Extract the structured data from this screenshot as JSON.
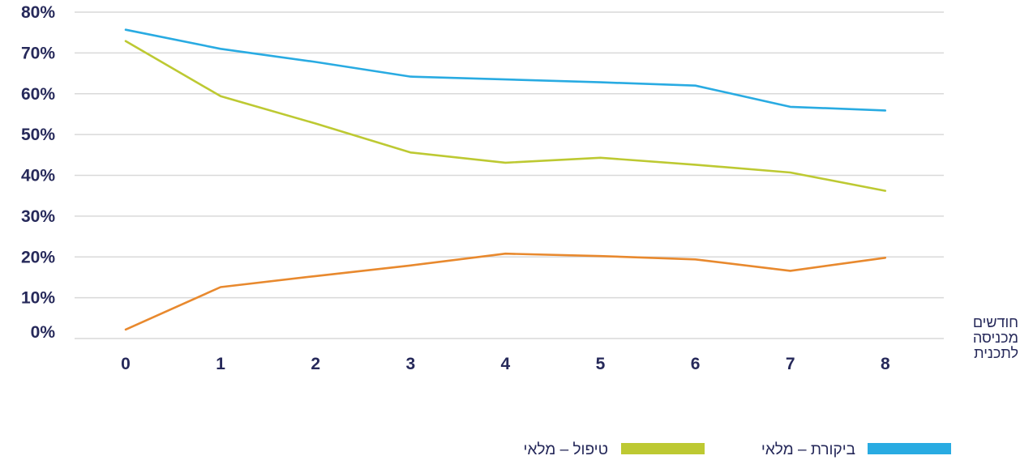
{
  "chart_data": {
    "type": "line",
    "title": "",
    "xlabel": [
      "חודשים",
      "מכניסה",
      "לתכנית"
    ],
    "ylabel": "",
    "x": [
      0,
      1,
      2,
      3,
      4,
      5,
      6,
      7,
      8
    ],
    "x_tick_labels": [
      "0",
      "1",
      "2",
      "3",
      "4",
      "5",
      "6",
      "7",
      "8"
    ],
    "ylim": [
      0,
      80
    ],
    "y_ticks": [
      0,
      10,
      20,
      30,
      40,
      50,
      60,
      70,
      80
    ],
    "y_tick_labels": [
      "0%",
      "10%",
      "20%",
      "30%",
      "40%",
      "50%",
      "60%",
      "70%",
      "80%"
    ],
    "grid": true,
    "legend_position": "bottom-right",
    "series": [
      {
        "name": "ביקורת – מלאי",
        "color": "#29abe2",
        "values": [
          75.7,
          71.0,
          67.8,
          64.2,
          63.5,
          62.8,
          62.0,
          56.8,
          55.9
        ]
      },
      {
        "name": "טיפול – מלאי",
        "color": "#bdc932",
        "values": [
          72.9,
          59.4,
          52.7,
          45.6,
          43.1,
          44.3,
          42.6,
          40.7,
          36.2
        ]
      },
      {
        "name": "",
        "color": "#e8892e",
        "values": [
          2.2,
          12.6,
          15.3,
          17.9,
          20.8,
          20.2,
          19.4,
          16.6,
          19.8
        ]
      }
    ]
  }
}
